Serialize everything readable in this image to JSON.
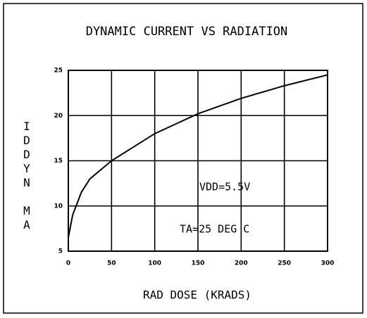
{
  "chart_data": {
    "type": "line",
    "title": "DYNAMIC CURRENT VS RADIATION",
    "x_label": "RAD DOSE (KRADS)",
    "y_label": "IDDYN MA",
    "annotations": [
      "VDD=5.5V",
      "TA=25 DEG C"
    ],
    "x": [
      0,
      5,
      15,
      25,
      50,
      100,
      150,
      200,
      250,
      300
    ],
    "series": [
      {
        "name": "IDDYN",
        "color": "#000000",
        "values": [
          6.5,
          9,
          11.5,
          13,
          15,
          18,
          20.2,
          21.9,
          23.3,
          24.5
        ]
      }
    ],
    "xlim": [
      0,
      300
    ],
    "xticks": [
      0,
      50,
      100,
      150,
      200,
      250,
      300
    ],
    "ylim": [
      5,
      25
    ],
    "yticks": [
      5,
      10,
      15,
      20,
      25
    ],
    "grid": true
  }
}
